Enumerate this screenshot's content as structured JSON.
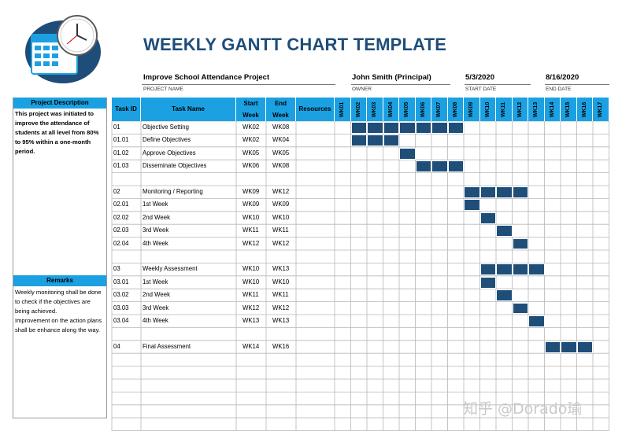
{
  "title": "WEEKLY GANTT CHART TEMPLATE",
  "project": {
    "name_value": "Improve School Attendance Project",
    "name_label": "PROJECT NAME",
    "owner_value": "John Smith (Principal)",
    "owner_label": "OWNER",
    "start_value": "5/3/2020",
    "start_label": "START DATE",
    "end_value": "8/16/2020",
    "end_label": "END DATE"
  },
  "sidebar": {
    "description_heading": "Project Description",
    "description_text": "This project was initiated to improve the attendance of students at all level from 80% to 95% within a one-month period.",
    "remarks_heading": "Remarks",
    "remarks_text": "Weekly monitoring shall be done to check if the objectives are being achieved.\nImprovement on the action plans shall be enhance along the way."
  },
  "headers": {
    "task_id": "Task ID",
    "task_name": "Task Name",
    "start": "Start",
    "start_sub": "Week",
    "end": "End",
    "end_sub": "Week",
    "resources": "Resources"
  },
  "colors": {
    "header_bg": "#1ba1e2",
    "bar_fill": "#1f4e79",
    "title": "#1e4d7a"
  },
  "chart_data": {
    "type": "table",
    "weeks": [
      "WK01",
      "WK02",
      "WK03",
      "WK04",
      "WK05",
      "WK06",
      "WK07",
      "WK08",
      "WK09",
      "WK10",
      "WK11",
      "WK12",
      "WK13",
      "WK14",
      "WK15",
      "WK16",
      "WK17"
    ],
    "rows": [
      {
        "id": "01",
        "name": "Objective Setting",
        "start": "WK02",
        "end": "WK08",
        "s": 2,
        "e": 8
      },
      {
        "id": "01.01",
        "name": "Define Objectives",
        "start": "WK02",
        "end": "WK04",
        "s": 2,
        "e": 4
      },
      {
        "id": "01.02",
        "name": "Approve Objectives",
        "start": "WK05",
        "end": "WK05",
        "s": 5,
        "e": 5
      },
      {
        "id": "01.03",
        "name": "Disseminate Objectives",
        "start": "WK06",
        "end": "WK08",
        "s": 6,
        "e": 8
      },
      {
        "id": "",
        "name": "",
        "start": "",
        "end": ""
      },
      {
        "id": "02",
        "name": "Monitoring / Reporting",
        "start": "WK09",
        "end": "WK12",
        "s": 9,
        "e": 12
      },
      {
        "id": "02.01",
        "name": "1st Week",
        "start": "WK09",
        "end": "WK09",
        "s": 9,
        "e": 9
      },
      {
        "id": "02.02",
        "name": "2nd Week",
        "start": "WK10",
        "end": "WK10",
        "s": 10,
        "e": 10
      },
      {
        "id": "02.03",
        "name": "3rd Week",
        "start": "WK11",
        "end": "WK11",
        "s": 11,
        "e": 11
      },
      {
        "id": "02.04",
        "name": "4th Week",
        "start": "WK12",
        "end": "WK12",
        "s": 12,
        "e": 12
      },
      {
        "id": "",
        "name": "",
        "start": "",
        "end": ""
      },
      {
        "id": "03",
        "name": "Weekly Assessment",
        "start": "WK10",
        "end": "WK13",
        "s": 10,
        "e": 13
      },
      {
        "id": "03.01",
        "name": "1st Week",
        "start": "WK10",
        "end": "WK10",
        "s": 10,
        "e": 10
      },
      {
        "id": "03.02",
        "name": "2nd Week",
        "start": "WK11",
        "end": "WK11",
        "s": 11,
        "e": 11
      },
      {
        "id": "03.03",
        "name": "3rd Week",
        "start": "WK12",
        "end": "WK12",
        "s": 12,
        "e": 12
      },
      {
        "id": "03.04",
        "name": "4th Week",
        "start": "WK13",
        "end": "WK13",
        "s": 13,
        "e": 13
      },
      {
        "id": "",
        "name": "",
        "start": "",
        "end": ""
      },
      {
        "id": "04",
        "name": "Final Assessment",
        "start": "WK14",
        "end": "WK16",
        "s": 14,
        "e": 16
      },
      {
        "id": "",
        "name": "",
        "start": "",
        "end": ""
      },
      {
        "id": "",
        "name": "",
        "start": "",
        "end": ""
      },
      {
        "id": "",
        "name": "",
        "start": "",
        "end": ""
      },
      {
        "id": "",
        "name": "",
        "start": "",
        "end": ""
      },
      {
        "id": "",
        "name": "",
        "start": "",
        "end": ""
      },
      {
        "id": "",
        "name": "",
        "start": "",
        "end": ""
      }
    ]
  },
  "watermark": "知乎 @Dorado瑜"
}
